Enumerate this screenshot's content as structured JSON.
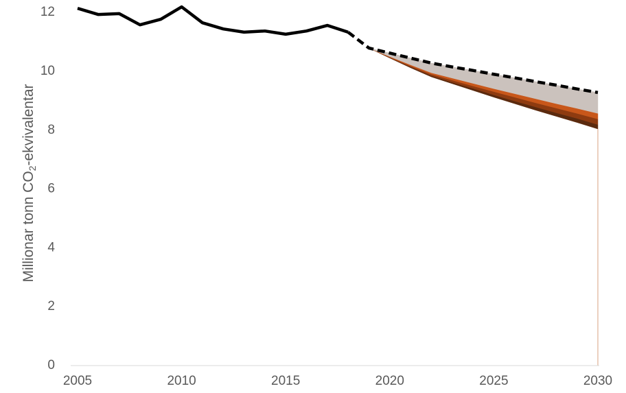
{
  "chart_data": {
    "type": "line",
    "ylabel": [
      "Millionar tonn CO",
      "2",
      "-ekvivalentar"
    ],
    "x": [
      2005,
      2006,
      2007,
      2008,
      2009,
      2010,
      2011,
      2012,
      2013,
      2014,
      2015,
      2016,
      2017,
      2018,
      2019,
      2020,
      2021,
      2022,
      2023,
      2024,
      2025,
      2026,
      2027,
      2028,
      2029,
      2030
    ],
    "xlim": [
      2005,
      2030
    ],
    "xticks": [
      2005,
      2010,
      2015,
      2020,
      2025,
      2030
    ],
    "ylim": [
      0,
      12.4
    ],
    "yticks": [
      0,
      2,
      4,
      6,
      8,
      10,
      12
    ],
    "series": [
      {
        "color": "#000000",
        "dash": false,
        "values": [
          12.14,
          11.93,
          11.96,
          11.58,
          11.77,
          12.19,
          11.65,
          11.44,
          11.33,
          11.37,
          11.26,
          11.37,
          11.56,
          11.33,
          null,
          null,
          null,
          null,
          null,
          null,
          null,
          null,
          null,
          null,
          null,
          null
        ]
      },
      {
        "color": "#000000",
        "dash": true,
        "values": [
          null,
          null,
          null,
          null,
          null,
          null,
          null,
          null,
          null,
          null,
          null,
          null,
          null,
          11.33,
          10.79,
          10.62,
          10.45,
          10.28,
          10.15,
          10.03,
          9.9,
          9.78,
          9.65,
          9.53,
          9.4,
          9.28
        ]
      }
    ],
    "areas": {
      "base": [
        null,
        null,
        null,
        null,
        null,
        null,
        null,
        null,
        null,
        null,
        null,
        null,
        null,
        null,
        10.79,
        10.45,
        10.12,
        9.81,
        9.58,
        9.35,
        9.12,
        8.9,
        8.68,
        8.47,
        8.26,
        8.04
      ],
      "bands": [
        {
          "color": "#5b2a0e",
          "values": [
            null,
            null,
            null,
            null,
            null,
            null,
            null,
            null,
            null,
            null,
            null,
            null,
            null,
            null,
            10.79,
            10.46,
            10.15,
            9.85,
            9.63,
            9.42,
            9.2,
            8.99,
            8.79,
            8.59,
            8.4,
            8.19
          ]
        },
        {
          "color": "#8e3b10",
          "values": [
            null,
            null,
            null,
            null,
            null,
            null,
            null,
            null,
            null,
            null,
            null,
            null,
            null,
            null,
            10.79,
            10.48,
            10.18,
            9.9,
            9.7,
            9.5,
            9.31,
            9.12,
            8.93,
            8.75,
            8.57,
            8.38
          ]
        },
        {
          "color": "#c8571a",
          "values": [
            null,
            null,
            null,
            null,
            null,
            null,
            null,
            null,
            null,
            null,
            null,
            null,
            null,
            null,
            10.79,
            10.5,
            10.22,
            9.95,
            9.77,
            9.59,
            9.41,
            9.24,
            9.07,
            8.9,
            8.74,
            8.57
          ]
        },
        {
          "color": "#cbc2bd",
          "values": [
            null,
            null,
            null,
            null,
            null,
            null,
            null,
            null,
            null,
            null,
            null,
            null,
            null,
            null,
            10.79,
            10.62,
            10.45,
            10.28,
            10.15,
            10.03,
            9.9,
            9.78,
            9.65,
            9.53,
            9.4,
            9.28
          ]
        }
      ]
    }
  }
}
